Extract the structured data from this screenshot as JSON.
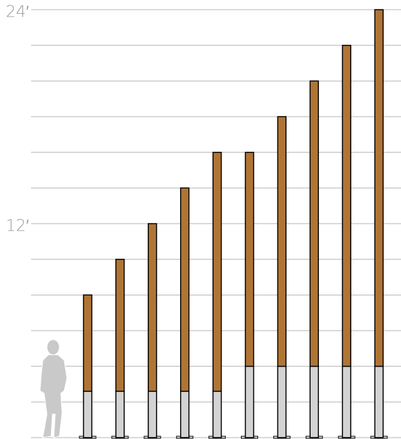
{
  "chart_data": {
    "type": "stacked-bar",
    "categories": [
      null,
      null,
      null,
      null,
      null,
      null,
      null,
      null,
      null,
      null
    ],
    "series": [
      {
        "name": null,
        "color": "#d3d3d3",
        "values": [
          2.6,
          2.6,
          2.6,
          2.6,
          2.6,
          4,
          4,
          4,
          4,
          4
        ]
      },
      {
        "name": null,
        "color": "#b07535",
        "values": [
          5.4,
          7.4,
          9.4,
          11.4,
          13.4,
          12,
          14,
          16,
          18,
          20
        ]
      }
    ],
    "ylim": [
      0,
      24
    ],
    "yticks": [
      {
        "value": 0,
        "label": null
      },
      {
        "value": 2,
        "label": null
      },
      {
        "value": 4,
        "label": null
      },
      {
        "value": 6,
        "label": null
      },
      {
        "value": 8,
        "label": null
      },
      {
        "value": 10,
        "label": null
      },
      {
        "value": 12,
        "label": "12′"
      },
      {
        "value": 14,
        "label": null
      },
      {
        "value": 16,
        "label": null
      },
      {
        "value": 18,
        "label": null
      },
      {
        "value": 20,
        "label": null
      },
      {
        "value": 22,
        "label": null
      },
      {
        "value": 24,
        "label": "24′"
      }
    ],
    "grid": true
  }
}
